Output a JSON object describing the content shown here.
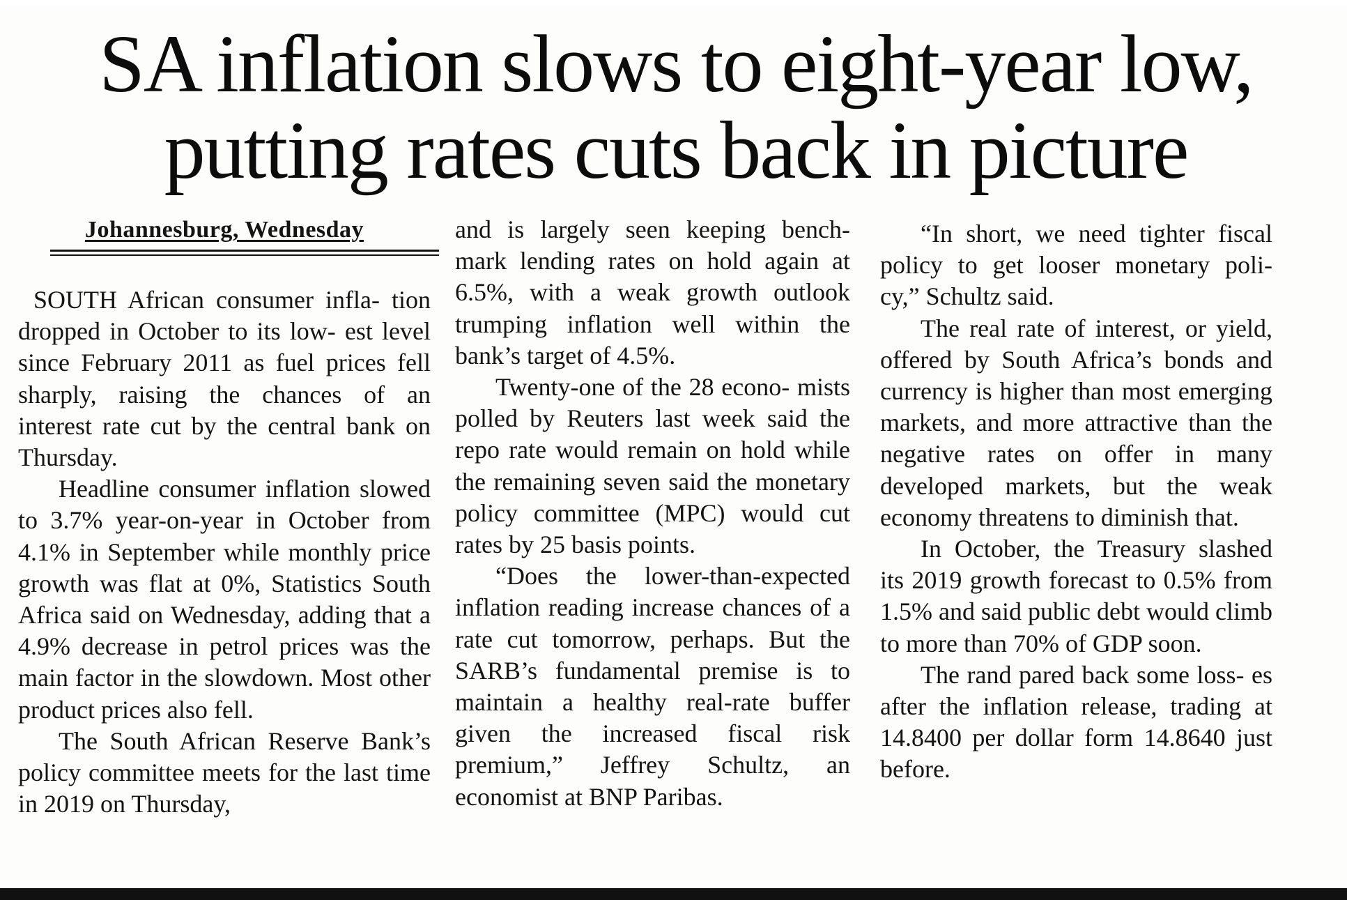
{
  "article": {
    "headline_line1": "SA inflation slows to eight-year low,",
    "headline_line2": "putting rates cuts back in picture",
    "dateline": "Johannesburg, Wednesday",
    "col1": {
      "p1": "SOUTH African consumer infla- tion dropped in October to its low- est level since February 2011 as fuel prices fell sharply, raising the chances of an interest rate cut by the central bank on Thursday.",
      "p2": "Headline consumer inflation slowed to 3.7% year-on-year in October from 4.1% in September while monthly price growth was flat at 0%, Statistics South Africa said on Wednesday, adding that a 4.9% decrease in petrol prices was the main factor in the slowdown. Most other product prices also fell.",
      "p3": "The South African Reserve Bank’s policy committee meets for the last time in 2019 on Thursday,"
    },
    "col2": {
      "p1": "and is largely seen keeping bench- mark lending rates on hold again at 6.5%, with a weak growth outlook trumping inflation well within the bank’s target of 4.5%.",
      "p2": "Twenty-one of the 28 econo- mists polled by Reuters last week said the repo rate would remain on hold while the remaining seven said the monetary policy committee (MPC) would cut rates by 25 basis points.",
      "p3": "“Does the lower-than-expected inflation reading increase chances of a rate cut tomorrow, perhaps. But the SARB’s fundamental premise is to maintain a healthy real-rate buffer given the increased fiscal risk premium,” Jeffrey Schultz, an economist at BNP Paribas."
    },
    "col3": {
      "p1": "“In short, we need tighter fiscal policy to get looser monetary poli- cy,” Schultz said.",
      "p2": "The real rate of interest, or yield, offered by South Africa’s bonds and currency is higher than most emerging markets, and more attractive than the negative rates on offer in many developed markets, but the weak economy threatens to diminish that.",
      "p3": "In October, the Treasury slashed its 2019 growth forecast to 0.5% from 1.5% and said public debt would climb to more than 70% of GDP soon.",
      "p4": "The rand pared back some loss- es after the inflation release, trading at 14.8400 per dollar form 14.8640 just before."
    }
  }
}
